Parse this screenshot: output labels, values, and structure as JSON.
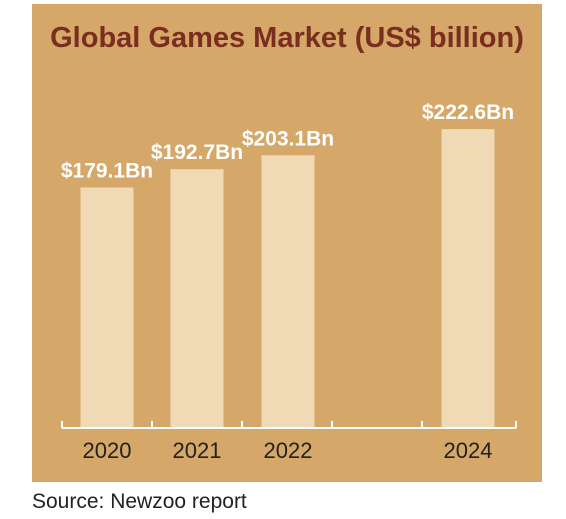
{
  "title": "Global Games Market (US$ billion)",
  "source": "Source: Newzoo report",
  "colors": {
    "panel": "#d5a769",
    "bar": "#f0d9b5",
    "title": "#7a2e1f",
    "value_label": "#ffffff",
    "axis": "#ffffff",
    "tick_label": "#222222"
  },
  "chart_data": {
    "type": "bar",
    "title": "Global Games Market (US$ billion)",
    "categories": [
      "2020",
      "2021",
      "2022",
      "2024"
    ],
    "values": [
      179.1,
      192.7,
      203.1,
      222.6
    ],
    "value_labels": [
      "$179.1Bn",
      "$192.7Bn",
      "$203.1Bn",
      "$222.6Bn"
    ],
    "xlabel": "",
    "ylabel": "",
    "ylim": [
      0,
      245
    ],
    "grid": false,
    "legend": "none"
  }
}
